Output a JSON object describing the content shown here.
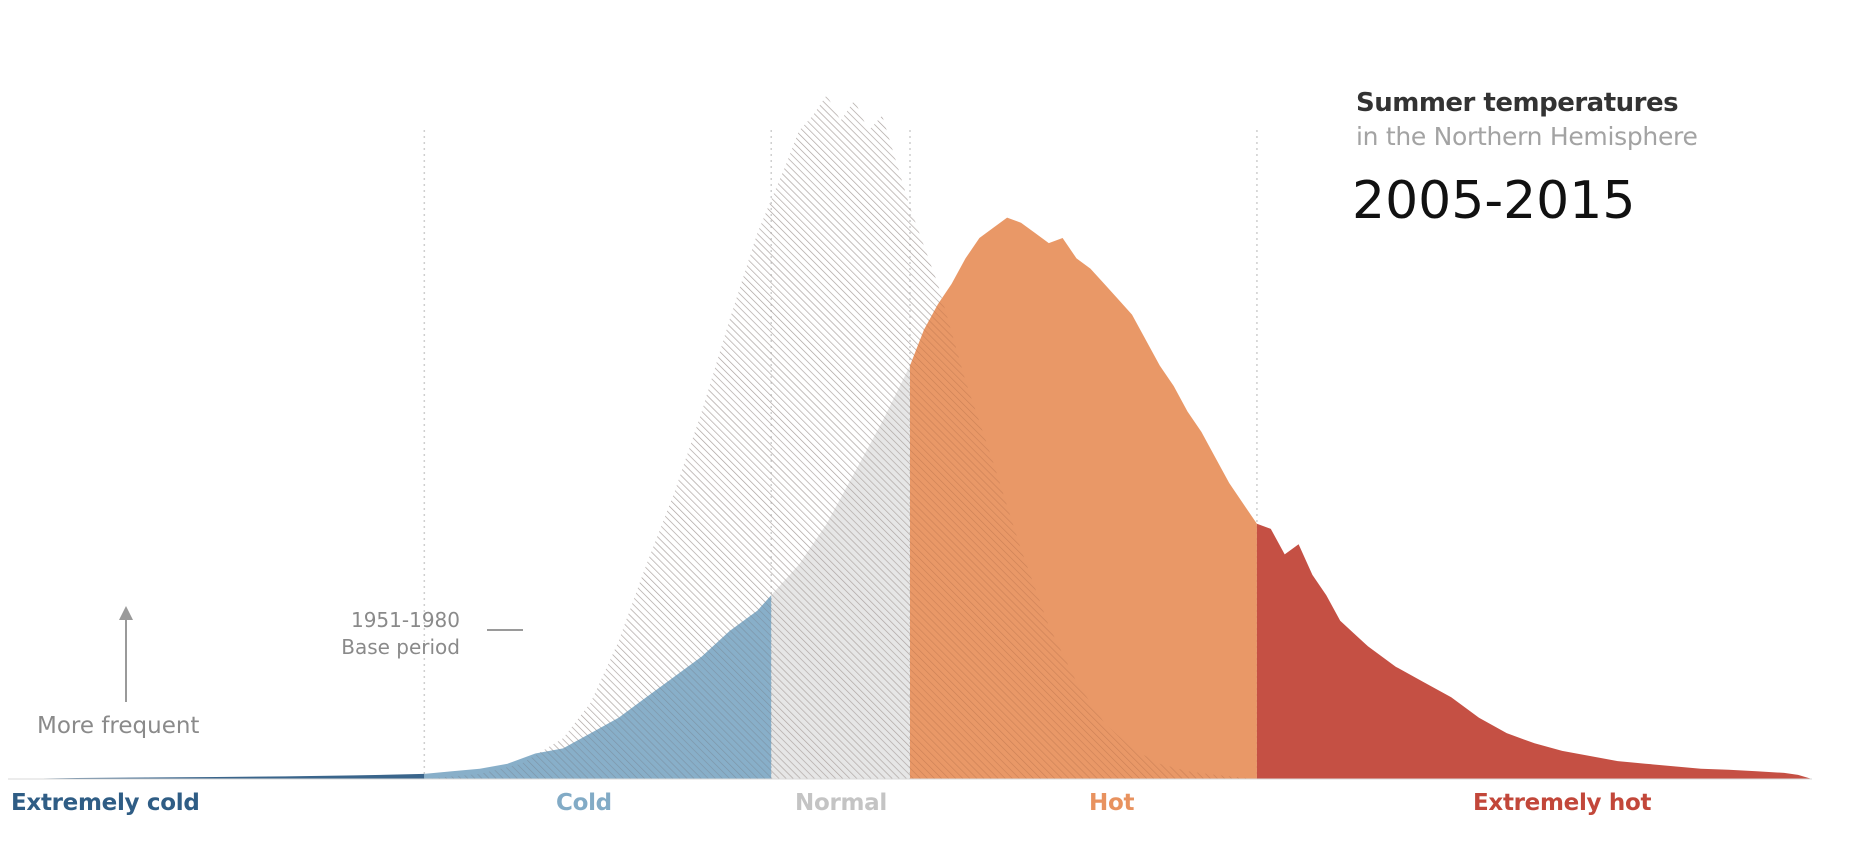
{
  "chart_data": {
    "type": "area",
    "title": "Summer temperatures",
    "subtitle": "in the Northern Hemisphere",
    "period_label": "2005-2015",
    "xlabel": "",
    "ylabel": "",
    "xlim": [
      -6,
      7
    ],
    "ylim": [
      0,
      1.35
    ],
    "grid": false,
    "y_indicator_label": "More frequent",
    "categories": [
      {
        "name": "Extremely cold",
        "from": -6,
        "to": -3,
        "color": "#2f5d85"
      },
      {
        "name": "Cold",
        "from": -3,
        "to": -0.5,
        "color": "#82abc6"
      },
      {
        "name": "Normal",
        "from": -0.5,
        "to": 0.5,
        "color": "#c8c8c8"
      },
      {
        "name": "Hot",
        "from": 0.5,
        "to": 3,
        "color": "#e8925f"
      },
      {
        "name": "Extremely hot",
        "from": 3,
        "to": 7,
        "color": "#c2473a"
      }
    ],
    "thresholds": [
      -3,
      -0.5,
      0.5,
      3
    ],
    "series": [
      {
        "name": "1951-1980 Base period",
        "label_lines": [
          "1951-1980",
          "Base period"
        ],
        "color": "#d6d6d6",
        "style": "hatched",
        "x": [
          -3,
          -2.6,
          -2.3,
          -2,
          -1.8,
          -1.6,
          -1.4,
          -1.2,
          -1.0,
          -0.8,
          -0.6,
          -0.4,
          -0.3,
          -0.2,
          -0.1,
          0,
          0.1,
          0.2,
          0.3,
          0.4,
          0.5,
          0.7,
          0.9,
          1.1,
          1.3,
          1.5,
          1.7,
          1.9,
          2.1,
          2.3,
          2.5,
          2.7,
          3,
          3.3
        ],
        "y": [
          0.0,
          0.01,
          0.03,
          0.08,
          0.15,
          0.27,
          0.42,
          0.56,
          0.72,
          0.9,
          1.07,
          1.2,
          1.27,
          1.3,
          1.34,
          1.29,
          1.33,
          1.27,
          1.3,
          1.21,
          1.12,
          0.97,
          0.78,
          0.62,
          0.45,
          0.3,
          0.19,
          0.11,
          0.06,
          0.03,
          0.015,
          0.008,
          0.0,
          0.0
        ]
      },
      {
        "name": "2005-2015",
        "color": "#e8925f",
        "x": [
          -6,
          -5.5,
          -5,
          -4.5,
          -4,
          -3.5,
          -3,
          -2.8,
          -2.6,
          -2.4,
          -2.2,
          -2.0,
          -1.8,
          -1.6,
          -1.4,
          -1.2,
          -1.0,
          -0.8,
          -0.6,
          -0.5,
          -0.3,
          -0.1,
          0.1,
          0.3,
          0.5,
          0.6,
          0.7,
          0.8,
          0.9,
          1.0,
          1.1,
          1.2,
          1.3,
          1.4,
          1.5,
          1.6,
          1.7,
          1.8,
          1.9,
          2.0,
          2.1,
          2.2,
          2.3,
          2.4,
          2.5,
          2.6,
          2.7,
          2.8,
          2.9,
          3.0,
          3.1,
          3.2,
          3.3,
          3.4,
          3.5,
          3.6,
          3.8,
          4.0,
          4.2,
          4.4,
          4.6,
          4.8,
          5.0,
          5.2,
          5.4,
          5.6,
          5.8,
          6.0,
          6.2,
          6.4,
          6.6,
          6.8,
          6.9,
          7.0
        ],
        "y": [
          0.0,
          0.002,
          0.003,
          0.004,
          0.005,
          0.007,
          0.01,
          0.015,
          0.02,
          0.03,
          0.05,
          0.06,
          0.09,
          0.12,
          0.16,
          0.2,
          0.24,
          0.29,
          0.33,
          0.36,
          0.42,
          0.5,
          0.6,
          0.7,
          0.81,
          0.88,
          0.93,
          0.97,
          1.02,
          1.06,
          1.08,
          1.1,
          1.09,
          1.07,
          1.05,
          1.06,
          1.02,
          1.0,
          0.97,
          0.94,
          0.91,
          0.86,
          0.81,
          0.77,
          0.72,
          0.68,
          0.63,
          0.58,
          0.54,
          0.5,
          0.49,
          0.44,
          0.46,
          0.4,
          0.36,
          0.31,
          0.26,
          0.22,
          0.19,
          0.16,
          0.12,
          0.09,
          0.07,
          0.055,
          0.045,
          0.035,
          0.03,
          0.025,
          0.02,
          0.018,
          0.015,
          0.012,
          0.008,
          0.0
        ]
      }
    ]
  }
}
